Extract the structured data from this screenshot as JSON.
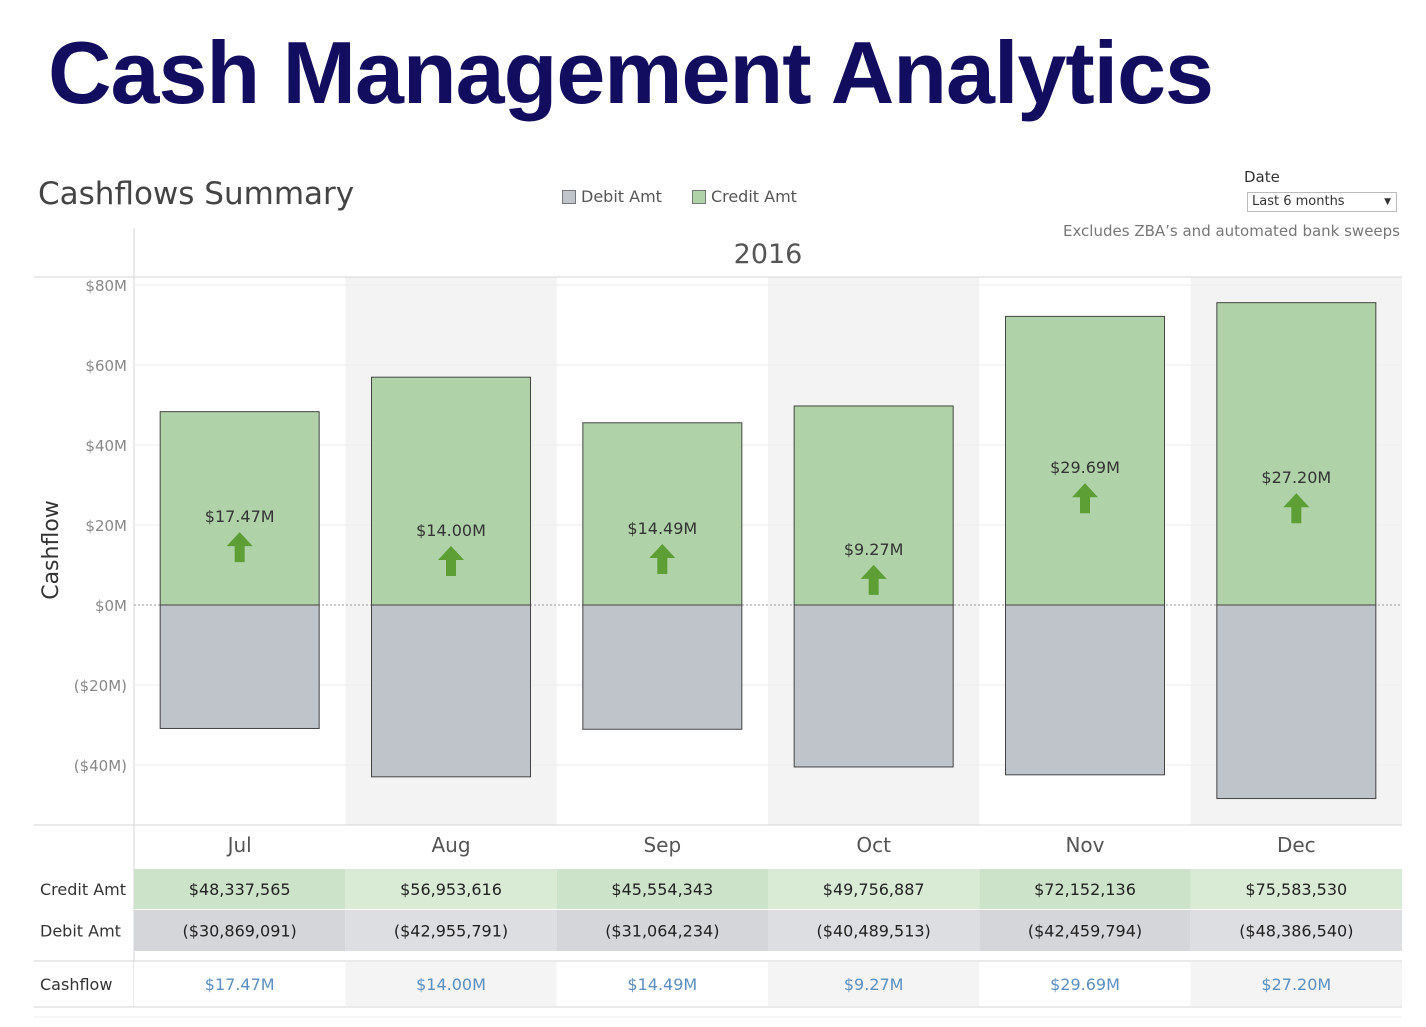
{
  "page": {
    "title": "Cash Management Analytics",
    "subtitle": "Cashflows Summary",
    "note": "Excludes ZBA’s and automated bank sweeps",
    "filter": {
      "label": "Date",
      "value": "Last 6 months"
    },
    "legend": [
      {
        "name": "Debit Amt",
        "color": "#bfc3ca"
      },
      {
        "name": "Credit Amt",
        "color": "#afd2a8"
      }
    ]
  },
  "chart_data": {
    "type": "bar",
    "stacked": "diverging",
    "year_header": "2016",
    "ylabel": "Cashflow",
    "ylim": [
      -55,
      80
    ],
    "yticks": [
      80,
      60,
      40,
      20,
      0,
      -20,
      -40
    ],
    "ytick_labels": [
      "$80M",
      "$60M",
      "$40M",
      "$20M",
      "$0M",
      "($20M)",
      "($40M)"
    ],
    "categories": [
      "Jul",
      "Aug",
      "Sep",
      "Oct",
      "Nov",
      "Dec"
    ],
    "series": [
      {
        "name": "Credit Amt",
        "color": "#afd2a8",
        "values": [
          48.337565,
          56.953616,
          45.554343,
          49.756887,
          72.152136,
          75.58353
        ]
      },
      {
        "name": "Debit Amt",
        "color": "#bfc3ca",
        "values": [
          -30.869091,
          -42.955791,
          -31.064234,
          -40.489513,
          -42.459794,
          -48.38654
        ]
      }
    ],
    "net_labels": [
      "$17.47M",
      "$14.00M",
      "$14.49M",
      "$9.27M",
      "$29.69M",
      "$27.20M"
    ],
    "indicator": "arrow-up-icon",
    "indicator_color": "#5d9e35",
    "grid": true,
    "table": {
      "rows": [
        {
          "label": "Credit Amt",
          "values": [
            "$48,337,565",
            "$56,953,616",
            "$45,554,343",
            "$49,756,887",
            "$72,152,136",
            "$75,583,530"
          ]
        },
        {
          "label": "Debit Amt",
          "values": [
            "($30,869,091)",
            "($42,955,791)",
            "($31,064,234)",
            "($40,489,513)",
            "($42,459,794)",
            "($48,386,540)"
          ]
        },
        {
          "label": "Cashflow",
          "values": [
            "$17.47M",
            "$14.00M",
            "$14.49M",
            "$9.27M",
            "$29.69M",
            "$27.20M"
          ]
        }
      ]
    }
  }
}
